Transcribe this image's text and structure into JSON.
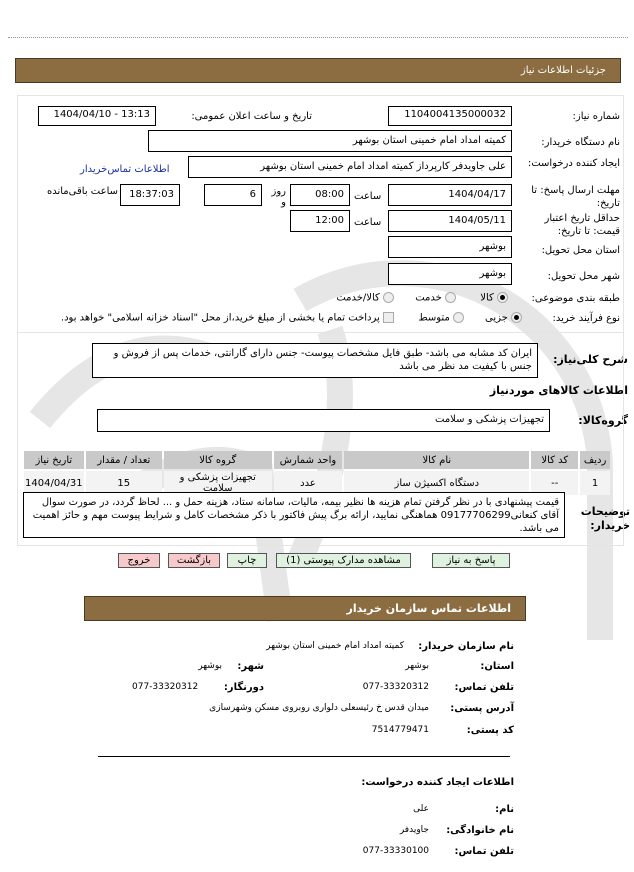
{
  "header": {
    "title": "جزئیات اطلاعات نیاز"
  },
  "form": {
    "need_number": {
      "label": "شماره نیاز:",
      "value": "1104004135000032"
    },
    "announce": {
      "label": "تاریخ و ساعت اعلان عمومی:",
      "value": "1404/04/10 - 13:13"
    },
    "buyer_org": {
      "label": "نام دستگاه خریدار:",
      "value": "کمیته امداد امام خمینی  استان  بوشهر"
    },
    "creator": {
      "label": "ایجاد کننده درخواست:",
      "value": "علی جاویدفر  کارپرداز  کمیته امداد امام  خمینی  استان  بوشهر",
      "link": "اطلاعات تماس‌خریدار"
    },
    "deadline": {
      "label": "مهلت ارسال پاسخ: تا تاریخ:",
      "date": "1404/04/17",
      "time_label": "ساعت",
      "time": "08:00",
      "days": "6",
      "days_label": "روز و",
      "remaining": "18:37:03",
      "remaining_label": "ساعت باقی‌مانده"
    },
    "validity": {
      "label": "حداقل تاریخ اعتبار قیمت: تا تاریخ:",
      "date": "1404/05/11",
      "time_label": "ساعت",
      "time": "12:00"
    },
    "province": {
      "label": "استان محل تحویل:",
      "value": "بوشهر"
    },
    "city": {
      "label": "شهر محل تحویل:",
      "value": "بوشهر"
    },
    "category": {
      "label": "طبقه بندی موضوعی:",
      "options": [
        "کالا",
        "خدمت",
        "کالا/خدمت"
      ],
      "selected": "کالا"
    },
    "process": {
      "label": "نوع فرآیند خرید:",
      "options": [
        "جزیی",
        "متوسط"
      ],
      "selected": "جزیی",
      "payment_text": "پرداخت تمام یا بخشی از مبلغ خرید،از محل \"اسناد خزانه اسلامی\" خواهد بود."
    }
  },
  "description": {
    "label": "شرح کلی‌نیاز:",
    "value": "ایران کد مشابه می باشد- طبق فایل  مشخصات  پیوست- جنس  دارای  گارانتی، خدمات پس از فروش و جنس با  کیفیت مد نظر می باشد"
  },
  "goods": {
    "title": "اطلاعات کالاهای موردنیاز",
    "group_label": "گروه‌کالا:",
    "group_value": "تجهیزات  پزشکی و سلامت",
    "columns": [
      "ردیف",
      "کد کالا",
      "نام کالا",
      "واحد شمارش",
      "گروه کالا",
      "تعداد / مقدار",
      "تاریخ نیاز"
    ],
    "rows": [
      [
        "1",
        "--",
        "دستگاه اکسیژن ساز",
        "عدد",
        "تجهیزات پزشکی و سلامت",
        "15",
        "1404/04/31"
      ]
    ]
  },
  "notes": {
    "label": "توضیحات خریدار:",
    "value": "قیمت  پیشنهادی با در نظر گرفتن تمام هزینه ها نظیر بیمه، مالیات، سامانه ستاد، هزینه حمل و ... لحاظ گردد، در صورت سوال آقای کنعانی09177706299 هماهنگی نمایید، ارائه برگ پیش فاکتور با ذکر  مشخصات کامل و شرایط پیوست مهم و حائز اهمیت می باشد."
  },
  "buttons": {
    "reply": "پاسخ به نیاز",
    "attachments": "مشاهده مدارک پیوستی (1)",
    "print": "چاپ",
    "back": "بازگشت",
    "exit": "خروج"
  },
  "contact": {
    "title": "اطلاعات تماس سازمان خریدار",
    "org_label": "نام سازمان خریدار:",
    "org_value": "کمیته امداد امام خمینی استان بوشهر",
    "province_label": "استان:",
    "province_value": "بوشهر",
    "city_label": "شهر:",
    "city_value": "بوشهر",
    "phone_label": "تلفن تماس:",
    "phone_value": "077-33320312",
    "fax_label": "دورنگار:",
    "fax_value": "077-33320312",
    "address_label": "آدرس پستی:",
    "address_value": "میدان قدس خ رئیسعلی  دلواری روبروی مسکن وشهرسازی",
    "postal_label": "کد پستی:",
    "postal_value": "7514779471"
  },
  "requester": {
    "title": "اطلاعات ایجاد کننده درخواست:",
    "name_label": "نام:",
    "name_value": "علی",
    "family_label": "نام خانوادگی:",
    "family_value": "جاویدفر",
    "phone_label": "تلفن تماس:",
    "phone_value": "077-33330100"
  },
  "colors": {
    "bar": "#8c6d42",
    "link": "#1a2ea0",
    "green_button": "#dff2df",
    "red_button": "#f6caca"
  }
}
